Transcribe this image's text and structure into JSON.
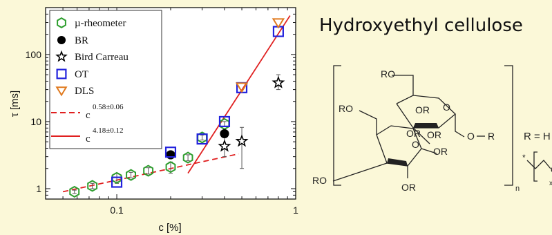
{
  "chart_data": {
    "type": "scatter",
    "title": "",
    "xlabel": "c [%]",
    "ylabel": "τ [ms]",
    "xscale": "log",
    "yscale": "log",
    "xlim": [
      0.04,
      1.0
    ],
    "ylim": [
      0.7,
      500
    ],
    "x_tick_labels": [
      "0.1",
      "1"
    ],
    "y_tick_labels": [
      "1",
      "10",
      "100"
    ],
    "legend_position": "top-left",
    "series": [
      {
        "name": "µ-rheometer",
        "marker": "hexagon",
        "color": "#2e9e2e",
        "x": [
          0.058,
          0.073,
          0.1,
          0.12,
          0.15,
          0.2,
          0.25,
          0.3,
          0.4
        ],
        "y": [
          0.9,
          1.1,
          1.45,
          1.6,
          1.85,
          2.1,
          2.9,
          5.8,
          9.2
        ],
        "err": [
          0.05,
          0.1,
          0.25,
          0.15,
          0.2,
          0.4,
          0.3,
          0.5,
          0.8
        ]
      },
      {
        "name": "BR",
        "marker": "filled-circle",
        "color": "#000000",
        "x": [
          0.2,
          0.4
        ],
        "y": [
          3.2,
          6.6
        ]
      },
      {
        "name": "Bird Carreau",
        "marker": "star",
        "color": "#000000",
        "x": [
          0.4,
          0.5,
          0.8
        ],
        "y": [
          4.3,
          5.1,
          38
        ],
        "err_low": [
          3.0,
          2.0,
          30
        ],
        "err_high": [
          5.8,
          8.2,
          50
        ]
      },
      {
        "name": "OT",
        "marker": "open-square",
        "color": "#2222dd",
        "x": [
          0.1,
          0.2,
          0.3,
          0.4,
          0.5,
          0.8
        ],
        "y": [
          1.25,
          3.5,
          5.5,
          10,
          32,
          220
        ]
      },
      {
        "name": "DLS",
        "marker": "down-triangle",
        "color": "#e07a1f",
        "x": [
          0.5,
          0.8
        ],
        "y": [
          33,
          300
        ]
      }
    ],
    "fits": [
      {
        "name": "c^{0.58±0.06}",
        "base": "c",
        "exponent": "0.58±0.06",
        "style": "dashed",
        "color": "#e02020",
        "x": [
          0.05,
          0.48
        ],
        "y": [
          0.9,
          3.3
        ]
      },
      {
        "name": "c^{4.18±0.12}",
        "base": "c",
        "exponent": "4.18±0.12",
        "style": "solid",
        "color": "#e02020",
        "x": [
          0.25,
          0.93
        ],
        "y": [
          1.7,
          380
        ]
      }
    ]
  },
  "figure": {
    "title": "Hydroxyethyl cellulose",
    "molecule": {
      "ro_labels": [
        "RO",
        "RO",
        "OR",
        "RO",
        "OR",
        "OR",
        "OR",
        "OR"
      ],
      "o_labels": [
        "O",
        "O",
        "O"
      ],
      "r_label": "R",
      "n_label": "n",
      "x_label": "x",
      "substituent": "R = H or"
    }
  }
}
